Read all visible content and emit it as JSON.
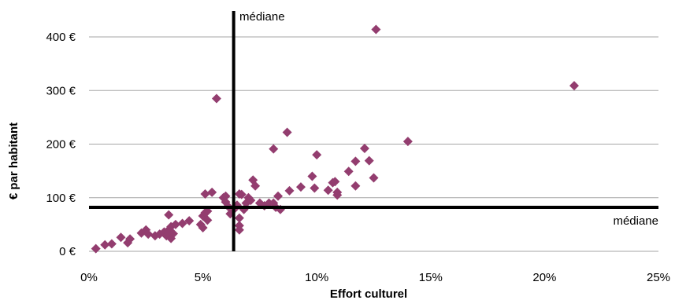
{
  "chart_data": {
    "type": "scatter",
    "title": "",
    "xlabel": "Effort culturel",
    "ylabel": "€ par habitant",
    "xlim": [
      0,
      25
    ],
    "ylim": [
      0,
      450
    ],
    "x_ticks": [
      {
        "value": 0,
        "label": "0%"
      },
      {
        "value": 5,
        "label": "5%"
      },
      {
        "value": 10,
        "label": "10%"
      },
      {
        "value": 15,
        "label": "15%"
      },
      {
        "value": 20,
        "label": "20%"
      },
      {
        "value": 25,
        "label": "25%"
      }
    ],
    "y_ticks": [
      {
        "value": 0,
        "label": "0 €"
      },
      {
        "value": 100,
        "label": "100 €"
      },
      {
        "value": 200,
        "label": "200 €"
      },
      {
        "value": 300,
        "label": "300 €"
      },
      {
        "value": 400,
        "label": "400 €"
      }
    ],
    "grid": "horizontal",
    "marker": "diamond",
    "colors": {
      "marker": "#933d6f",
      "grid": "#a6a6a6",
      "median": "#000000",
      "axis": "#a6a6a6"
    },
    "median_x": {
      "value": 6.35,
      "label": "médiane"
    },
    "median_y": {
      "value": 82,
      "label": "médiane"
    },
    "series": [
      {
        "points": [
          [
            0.3,
            5
          ],
          [
            0.7,
            12
          ],
          [
            1.0,
            14
          ],
          [
            1.4,
            26
          ],
          [
            1.7,
            16
          ],
          [
            1.8,
            23
          ],
          [
            2.3,
            34
          ],
          [
            2.5,
            40
          ],
          [
            2.6,
            32
          ],
          [
            2.9,
            29
          ],
          [
            3.1,
            32
          ],
          [
            3.3,
            36
          ],
          [
            3.4,
            29
          ],
          [
            3.5,
            40
          ],
          [
            3.6,
            24
          ],
          [
            3.6,
            46
          ],
          [
            3.7,
            33
          ],
          [
            3.8,
            50
          ],
          [
            3.5,
            68
          ],
          [
            4.1,
            52
          ],
          [
            4.4,
            57
          ],
          [
            4.9,
            50
          ],
          [
            5.0,
            44
          ],
          [
            5.0,
            66
          ],
          [
            5.1,
            72
          ],
          [
            5.2,
            58
          ],
          [
            5.1,
            107
          ],
          [
            5.4,
            110
          ],
          [
            5.2,
            75
          ],
          [
            5.6,
            285
          ],
          [
            5.9,
            100
          ],
          [
            6.0,
            103
          ],
          [
            6.0,
            92
          ],
          [
            6.1,
            84
          ],
          [
            6.2,
            70
          ],
          [
            6.3,
            76
          ],
          [
            6.4,
            80
          ],
          [
            6.5,
            86
          ],
          [
            6.6,
            107
          ],
          [
            6.6,
            62
          ],
          [
            6.6,
            48
          ],
          [
            6.6,
            40
          ],
          [
            6.7,
            106
          ],
          [
            6.8,
            78
          ],
          [
            6.9,
            90
          ],
          [
            7.0,
            100
          ],
          [
            7.1,
            95
          ],
          [
            7.2,
            133
          ],
          [
            7.3,
            122
          ],
          [
            7.5,
            90
          ],
          [
            7.7,
            85
          ],
          [
            7.9,
            90
          ],
          [
            8.1,
            90
          ],
          [
            8.1,
            191
          ],
          [
            8.2,
            82
          ],
          [
            8.3,
            103
          ],
          [
            8.4,
            78
          ],
          [
            8.7,
            222
          ],
          [
            8.8,
            113
          ],
          [
            9.3,
            120
          ],
          [
            9.8,
            140
          ],
          [
            9.9,
            118
          ],
          [
            10.0,
            180
          ],
          [
            10.5,
            114
          ],
          [
            10.7,
            128
          ],
          [
            10.8,
            130
          ],
          [
            10.9,
            110
          ],
          [
            10.9,
            105
          ],
          [
            11.4,
            149
          ],
          [
            11.7,
            168
          ],
          [
            11.7,
            122
          ],
          [
            12.1,
            192
          ],
          [
            12.3,
            169
          ],
          [
            12.5,
            137
          ],
          [
            12.6,
            414
          ],
          [
            14.0,
            205
          ],
          [
            21.3,
            309
          ]
        ]
      }
    ]
  }
}
